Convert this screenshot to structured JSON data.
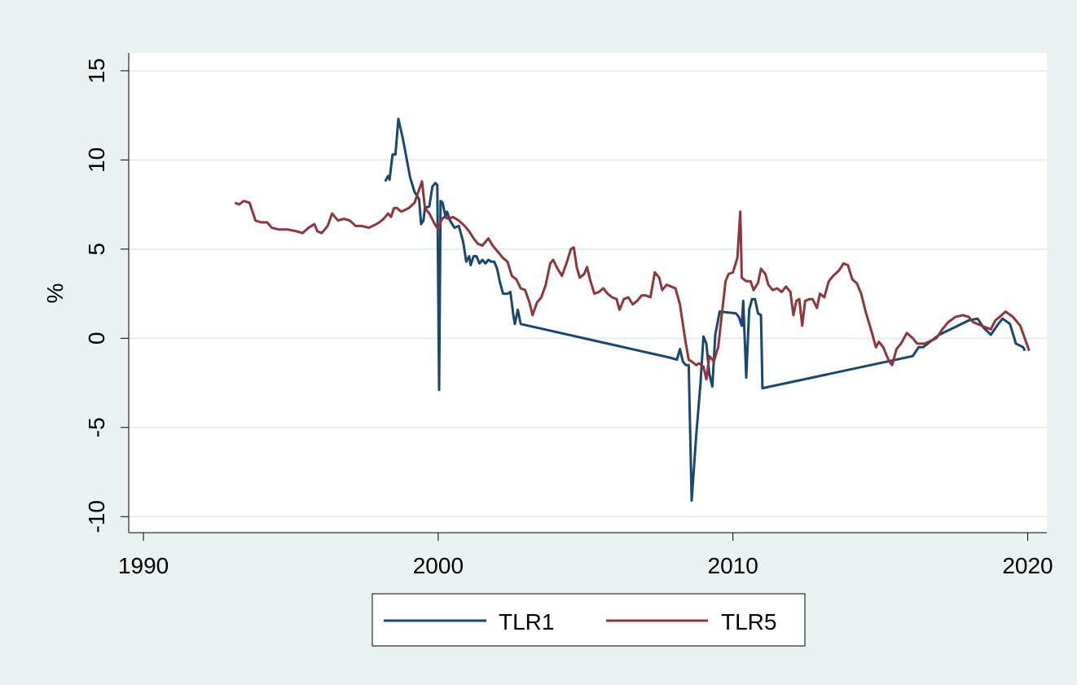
{
  "chart_data": {
    "type": "line",
    "title": "",
    "xlabel": "",
    "ylabel": "%",
    "xlim": [
      1989.5,
      2020.65
    ],
    "ylim": [
      -10.9,
      16
    ],
    "x_ticks": [
      1990,
      2000,
      2010,
      2020
    ],
    "x_tick_labels": [
      "1990",
      "2000",
      "2010",
      "2020"
    ],
    "y_ticks": [
      -10,
      -5,
      0,
      5,
      10,
      15
    ],
    "y_tick_labels": [
      "-10",
      "-5",
      "0",
      "5",
      "10",
      "15"
    ],
    "grid": "horizontal",
    "legend": "bottom",
    "colors": {
      "plot_background": "#ffffff",
      "outer_background": "#eaf2f3",
      "grid": "#e3eeef"
    },
    "series": [
      {
        "name": "TLR1",
        "color": "#1a476f",
        "points": [
          [
            1998.2,
            8.8
          ],
          [
            1998.3,
            9.1
          ],
          [
            1998.35,
            8.9
          ],
          [
            1998.45,
            10.3
          ],
          [
            1998.55,
            10.3
          ],
          [
            1998.65,
            12.3
          ],
          [
            1998.8,
            11.2
          ],
          [
            1999.05,
            9.0
          ],
          [
            1999.2,
            8.2
          ],
          [
            1999.35,
            7.8
          ],
          [
            1999.42,
            6.4
          ],
          [
            1999.5,
            6.6
          ],
          [
            1999.55,
            7.3
          ],
          [
            1999.7,
            7.4
          ],
          [
            1999.8,
            8.5
          ],
          [
            1999.9,
            8.7
          ],
          [
            1999.97,
            8.6
          ],
          [
            2000.03,
            -2.9
          ],
          [
            2000.08,
            7.7
          ],
          [
            2000.15,
            7.6
          ],
          [
            2000.25,
            6.8
          ],
          [
            2000.3,
            7.1
          ],
          [
            2000.4,
            6.6
          ],
          [
            2000.55,
            6.2
          ],
          [
            2000.7,
            6.3
          ],
          [
            2000.85,
            5.4
          ],
          [
            2000.95,
            4.3
          ],
          [
            2001.05,
            4.6
          ],
          [
            2001.1,
            4.1
          ],
          [
            2001.2,
            4.6
          ],
          [
            2001.3,
            4.6
          ],
          [
            2001.4,
            4.2
          ],
          [
            2001.5,
            4.4
          ],
          [
            2001.6,
            4.2
          ],
          [
            2001.7,
            4.4
          ],
          [
            2001.8,
            4.3
          ],
          [
            2001.9,
            4.3
          ],
          [
            2002.0,
            3.9
          ],
          [
            2002.1,
            3.1
          ],
          [
            2002.2,
            2.5
          ],
          [
            2002.35,
            2.5
          ],
          [
            2002.45,
            2.6
          ],
          [
            2002.55,
            1.3
          ],
          [
            2002.6,
            0.8
          ],
          [
            2002.7,
            1.6
          ],
          [
            2002.8,
            0.8
          ],
          [
            2007.9,
            -1.1
          ],
          [
            2008.1,
            -1.2
          ],
          [
            2008.2,
            -0.6
          ],
          [
            2008.3,
            -1.3
          ],
          [
            2008.4,
            -1.5
          ],
          [
            2008.5,
            -1.5
          ],
          [
            2008.6,
            -9.1
          ],
          [
            2008.75,
            -5.5
          ],
          [
            2008.9,
            -2.5
          ],
          [
            2009.0,
            0.1
          ],
          [
            2009.1,
            -0.3
          ],
          [
            2009.2,
            -2.0
          ],
          [
            2009.3,
            -2.7
          ],
          [
            2009.4,
            0.2
          ],
          [
            2009.55,
            1.5
          ],
          [
            2010.1,
            1.4
          ],
          [
            2010.2,
            1.2
          ],
          [
            2010.3,
            0.7
          ],
          [
            2010.35,
            2.1
          ],
          [
            2010.45,
            -2.2
          ],
          [
            2010.55,
            1.6
          ],
          [
            2010.65,
            2.2
          ],
          [
            2010.75,
            2.2
          ],
          [
            2010.85,
            1.4
          ],
          [
            2010.95,
            1.3
          ],
          [
            2011.0,
            -2.8
          ],
          [
            2016.1,
            -1.0
          ],
          [
            2016.3,
            -0.5
          ],
          [
            2016.45,
            -0.5
          ],
          [
            2017.0,
            0.2
          ],
          [
            2018.0,
            1.0
          ],
          [
            2018.3,
            1.1
          ],
          [
            2018.5,
            0.6
          ],
          [
            2018.75,
            0.2
          ],
          [
            2019.0,
            0.8
          ],
          [
            2019.15,
            1.1
          ],
          [
            2019.4,
            0.8
          ],
          [
            2019.6,
            -0.3
          ],
          [
            2019.85,
            -0.5
          ],
          [
            2019.9,
            -0.7
          ]
        ]
      },
      {
        "name": "TLR5",
        "color": "#90353b",
        "points": [
          [
            1993.1,
            7.6
          ],
          [
            1993.25,
            7.5
          ],
          [
            1993.4,
            7.7
          ],
          [
            1993.6,
            7.6
          ],
          [
            1993.8,
            6.6
          ],
          [
            1994.0,
            6.5
          ],
          [
            1994.2,
            6.5
          ],
          [
            1994.35,
            6.2
          ],
          [
            1994.6,
            6.1
          ],
          [
            1994.9,
            6.1
          ],
          [
            1995.2,
            6.0
          ],
          [
            1995.4,
            5.9
          ],
          [
            1995.6,
            6.2
          ],
          [
            1995.8,
            6.4
          ],
          [
            1995.9,
            6.0
          ],
          [
            1996.05,
            5.9
          ],
          [
            1996.25,
            6.3
          ],
          [
            1996.4,
            7.0
          ],
          [
            1996.6,
            6.6
          ],
          [
            1996.8,
            6.7
          ],
          [
            1997.0,
            6.6
          ],
          [
            1997.2,
            6.3
          ],
          [
            1997.4,
            6.3
          ],
          [
            1997.65,
            6.2
          ],
          [
            1997.9,
            6.4
          ],
          [
            1998.0,
            6.5
          ],
          [
            1998.15,
            6.7
          ],
          [
            1998.3,
            7.0
          ],
          [
            1998.4,
            6.8
          ],
          [
            1998.5,
            7.3
          ],
          [
            1998.6,
            7.3
          ],
          [
            1998.75,
            7.1
          ],
          [
            1999.0,
            7.3
          ],
          [
            1999.2,
            7.6
          ],
          [
            1999.3,
            8.1
          ],
          [
            1999.45,
            8.8
          ],
          [
            1999.55,
            7.3
          ],
          [
            1999.7,
            7.0
          ],
          [
            1999.85,
            6.5
          ],
          [
            2000.0,
            6.1
          ],
          [
            2000.1,
            6.6
          ],
          [
            2000.2,
            6.8
          ],
          [
            2000.35,
            6.7
          ],
          [
            2000.5,
            6.8
          ],
          [
            2000.7,
            6.6
          ],
          [
            2000.9,
            6.3
          ],
          [
            2001.05,
            6.0
          ],
          [
            2001.2,
            5.6
          ],
          [
            2001.35,
            5.3
          ],
          [
            2001.5,
            5.2
          ],
          [
            2001.7,
            5.6
          ],
          [
            2001.85,
            5.2
          ],
          [
            2002.0,
            4.9
          ],
          [
            2002.2,
            4.5
          ],
          [
            2002.35,
            4.3
          ],
          [
            2002.5,
            3.5
          ],
          [
            2002.65,
            3.3
          ],
          [
            2002.8,
            2.8
          ],
          [
            2002.95,
            2.7
          ],
          [
            2003.1,
            2.0
          ],
          [
            2003.2,
            1.3
          ],
          [
            2003.35,
            2.0
          ],
          [
            2003.5,
            2.3
          ],
          [
            2003.65,
            3.0
          ],
          [
            2003.8,
            4.2
          ],
          [
            2003.9,
            4.4
          ],
          [
            2004.05,
            3.9
          ],
          [
            2004.2,
            3.5
          ],
          [
            2004.35,
            4.2
          ],
          [
            2004.5,
            5.0
          ],
          [
            2004.6,
            5.1
          ],
          [
            2004.7,
            4.0
          ],
          [
            2004.8,
            3.4
          ],
          [
            2004.95,
            3.6
          ],
          [
            2005.05,
            4.0
          ],
          [
            2005.15,
            3.3
          ],
          [
            2005.3,
            2.5
          ],
          [
            2005.45,
            2.6
          ],
          [
            2005.6,
            2.8
          ],
          [
            2005.75,
            2.5
          ],
          [
            2005.9,
            2.3
          ],
          [
            2006.05,
            2.2
          ],
          [
            2006.15,
            1.6
          ],
          [
            2006.3,
            2.2
          ],
          [
            2006.45,
            2.3
          ],
          [
            2006.6,
            1.9
          ],
          [
            2006.75,
            2.1
          ],
          [
            2006.9,
            2.4
          ],
          [
            2007.05,
            2.4
          ],
          [
            2007.2,
            2.3
          ],
          [
            2007.35,
            3.7
          ],
          [
            2007.5,
            3.4
          ],
          [
            2007.6,
            2.7
          ],
          [
            2007.75,
            3.0
          ],
          [
            2007.9,
            2.9
          ],
          [
            2008.05,
            2.8
          ],
          [
            2008.2,
            1.9
          ],
          [
            2008.4,
            -0.3
          ],
          [
            2008.5,
            -1.2
          ],
          [
            2008.6,
            -1.3
          ],
          [
            2008.75,
            -1.5
          ],
          [
            2008.85,
            -1.4
          ],
          [
            2009.0,
            -1.6
          ],
          [
            2009.1,
            -2.3
          ],
          [
            2009.2,
            -1.0
          ],
          [
            2009.35,
            -1.3
          ],
          [
            2009.5,
            -0.5
          ],
          [
            2009.6,
            1.0
          ],
          [
            2009.75,
            3.2
          ],
          [
            2009.85,
            3.6
          ],
          [
            2010.0,
            3.7
          ],
          [
            2010.15,
            4.5
          ],
          [
            2010.25,
            7.1
          ],
          [
            2010.3,
            3.4
          ],
          [
            2010.45,
            3.2
          ],
          [
            2010.6,
            3.2
          ],
          [
            2010.7,
            2.7
          ],
          [
            2010.85,
            3.1
          ],
          [
            2010.95,
            3.9
          ],
          [
            2011.1,
            3.6
          ],
          [
            2011.2,
            3.0
          ],
          [
            2011.35,
            2.7
          ],
          [
            2011.5,
            2.8
          ],
          [
            2011.65,
            2.6
          ],
          [
            2011.8,
            2.9
          ],
          [
            2011.95,
            2.6
          ],
          [
            2012.05,
            1.3
          ],
          [
            2012.15,
            2.1
          ],
          [
            2012.25,
            2.2
          ],
          [
            2012.35,
            0.7
          ],
          [
            2012.45,
            2.1
          ],
          [
            2012.6,
            2.2
          ],
          [
            2012.7,
            2.2
          ],
          [
            2012.85,
            1.7
          ],
          [
            2012.95,
            2.5
          ],
          [
            2013.1,
            2.3
          ],
          [
            2013.25,
            3.2
          ],
          [
            2013.4,
            3.5
          ],
          [
            2013.6,
            3.8
          ],
          [
            2013.75,
            4.2
          ],
          [
            2013.9,
            4.1
          ],
          [
            2014.05,
            3.3
          ],
          [
            2014.2,
            3.1
          ],
          [
            2014.35,
            2.5
          ],
          [
            2014.5,
            1.5
          ],
          [
            2014.7,
            0.4
          ],
          [
            2014.85,
            -0.5
          ],
          [
            2014.95,
            -0.2
          ],
          [
            2015.1,
            -0.5
          ],
          [
            2015.3,
            -1.3
          ],
          [
            2015.4,
            -1.5
          ],
          [
            2015.55,
            -0.6
          ],
          [
            2015.7,
            -0.3
          ],
          [
            2015.9,
            0.3
          ],
          [
            2016.1,
            0.0
          ],
          [
            2016.25,
            -0.3
          ],
          [
            2016.5,
            -0.3
          ],
          [
            2016.9,
            0.0
          ],
          [
            2017.1,
            0.5
          ],
          [
            2017.3,
            0.9
          ],
          [
            2017.55,
            1.2
          ],
          [
            2017.8,
            1.3
          ],
          [
            2018.0,
            1.2
          ],
          [
            2018.15,
            0.9
          ],
          [
            2018.45,
            0.7
          ],
          [
            2018.75,
            0.5
          ],
          [
            2018.9,
            1.0
          ],
          [
            2019.05,
            1.2
          ],
          [
            2019.25,
            1.5
          ],
          [
            2019.5,
            1.2
          ],
          [
            2019.75,
            0.7
          ],
          [
            2019.9,
            0.0
          ],
          [
            2020.05,
            -0.7
          ]
        ]
      }
    ]
  }
}
